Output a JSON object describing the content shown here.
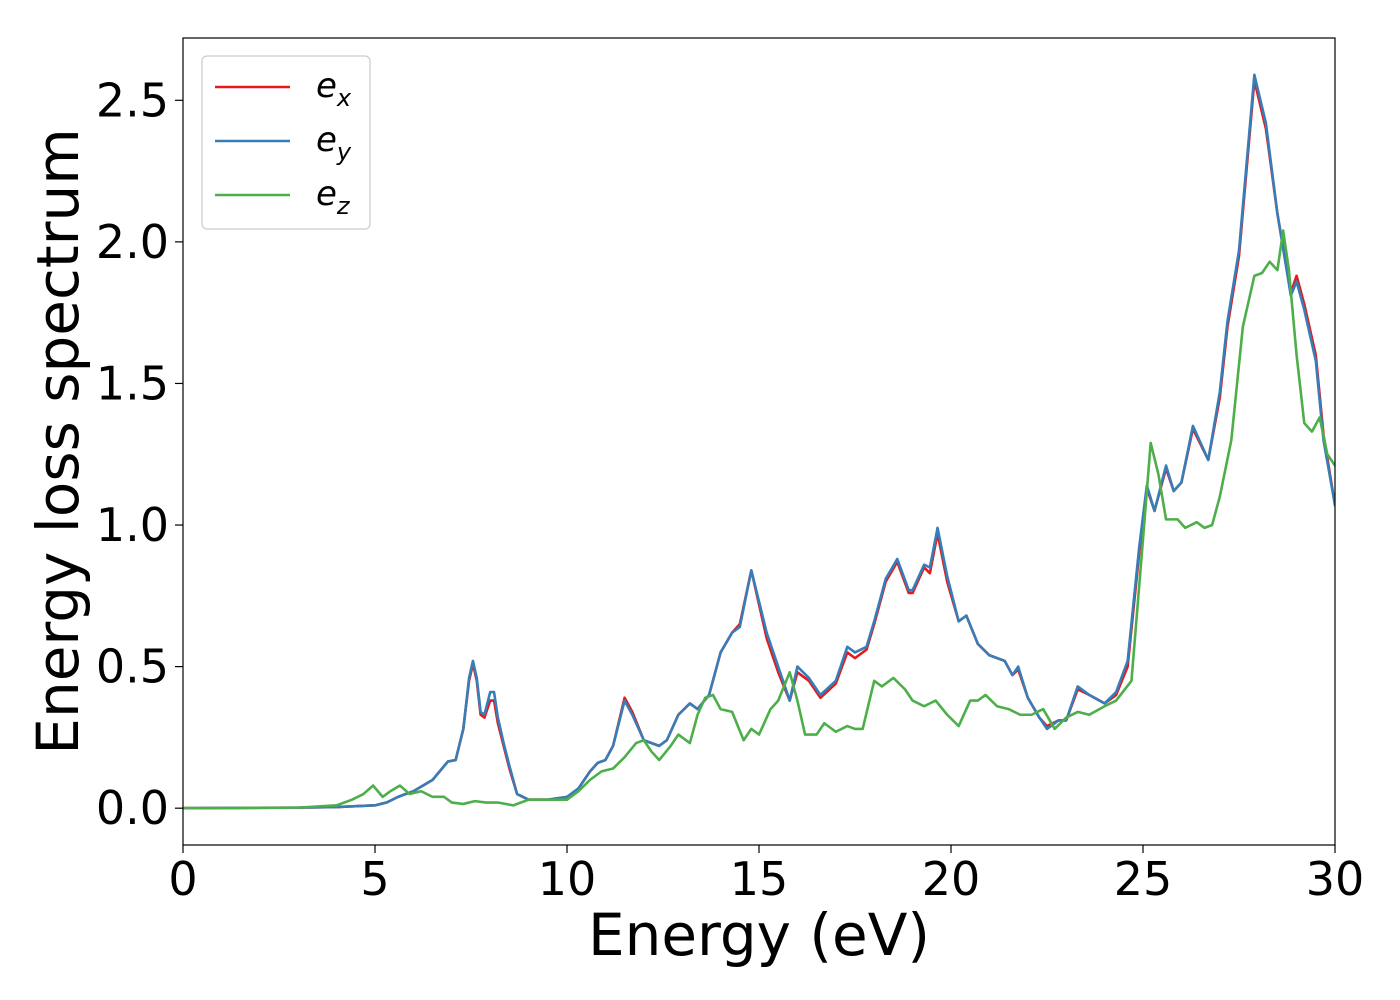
{
  "chart_data": {
    "type": "line",
    "title": "",
    "xlabel": "Energy (eV)",
    "ylabel": "Energy loss spectrum",
    "xlim": [
      0,
      30
    ],
    "ylim": [
      -0.13,
      2.72
    ],
    "xticks": [
      0,
      5,
      10,
      15,
      20,
      25,
      30
    ],
    "xtick_labels": [
      "0",
      "5",
      "10",
      "15",
      "20",
      "25",
      "30"
    ],
    "yticks": [
      0.0,
      0.5,
      1.0,
      1.5,
      2.0,
      2.5
    ],
    "ytick_labels": [
      "0.0",
      "0.5",
      "1.0",
      "1.5",
      "2.0",
      "2.5"
    ],
    "grid": false,
    "legend_position": "top-left",
    "series": [
      {
        "name": "e",
        "subscript": "x",
        "color": "#e41a1c",
        "points": [
          [
            0,
            0
          ],
          [
            3,
            0.002
          ],
          [
            4,
            0.004
          ],
          [
            5,
            0.01
          ],
          [
            5.3,
            0.02
          ],
          [
            5.6,
            0.04
          ],
          [
            6,
            0.06
          ],
          [
            6.5,
            0.1
          ],
          [
            6.9,
            0.165
          ],
          [
            7.1,
            0.17
          ],
          [
            7.3,
            0.28
          ],
          [
            7.45,
            0.45
          ],
          [
            7.55,
            0.51
          ],
          [
            7.65,
            0.45
          ],
          [
            7.75,
            0.33
          ],
          [
            7.85,
            0.32
          ],
          [
            8.0,
            0.38
          ],
          [
            8.1,
            0.38
          ],
          [
            8.2,
            0.3
          ],
          [
            8.35,
            0.22
          ],
          [
            8.5,
            0.14
          ],
          [
            8.7,
            0.05
          ],
          [
            9.0,
            0.03
          ],
          [
            9.5,
            0.03
          ],
          [
            10.0,
            0.04
          ],
          [
            10.3,
            0.07
          ],
          [
            10.6,
            0.13
          ],
          [
            10.8,
            0.16
          ],
          [
            11.0,
            0.17
          ],
          [
            11.2,
            0.22
          ],
          [
            11.5,
            0.39
          ],
          [
            11.7,
            0.34
          ],
          [
            12.0,
            0.24
          ],
          [
            12.4,
            0.22
          ],
          [
            12.6,
            0.24
          ],
          [
            12.9,
            0.33
          ],
          [
            13.2,
            0.37
          ],
          [
            13.4,
            0.35
          ],
          [
            13.7,
            0.4
          ],
          [
            14.0,
            0.55
          ],
          [
            14.3,
            0.62
          ],
          [
            14.5,
            0.65
          ],
          [
            14.8,
            0.84
          ],
          [
            15.0,
            0.72
          ],
          [
            15.2,
            0.6
          ],
          [
            15.5,
            0.48
          ],
          [
            15.8,
            0.38
          ],
          [
            16.0,
            0.48
          ],
          [
            16.3,
            0.45
          ],
          [
            16.6,
            0.39
          ],
          [
            17.0,
            0.44
          ],
          [
            17.3,
            0.55
          ],
          [
            17.5,
            0.53
          ],
          [
            17.8,
            0.56
          ],
          [
            18.0,
            0.65
          ],
          [
            18.3,
            0.8
          ],
          [
            18.6,
            0.87
          ],
          [
            18.9,
            0.76
          ],
          [
            19.0,
            0.76
          ],
          [
            19.3,
            0.85
          ],
          [
            19.45,
            0.83
          ],
          [
            19.65,
            0.97
          ],
          [
            19.9,
            0.8
          ],
          [
            20.2,
            0.66
          ],
          [
            20.4,
            0.68
          ],
          [
            20.7,
            0.58
          ],
          [
            21.0,
            0.54
          ],
          [
            21.4,
            0.52
          ],
          [
            21.6,
            0.47
          ],
          [
            21.75,
            0.49
          ],
          [
            22.0,
            0.39
          ],
          [
            22.3,
            0.32
          ],
          [
            22.5,
            0.29
          ],
          [
            22.8,
            0.31
          ],
          [
            23.0,
            0.31
          ],
          [
            23.3,
            0.42
          ],
          [
            23.6,
            0.4
          ],
          [
            24.0,
            0.37
          ],
          [
            24.3,
            0.4
          ],
          [
            24.6,
            0.5
          ],
          [
            24.9,
            0.9
          ],
          [
            25.1,
            1.13
          ],
          [
            25.3,
            1.05
          ],
          [
            25.6,
            1.2
          ],
          [
            25.8,
            1.12
          ],
          [
            26.0,
            1.15
          ],
          [
            26.3,
            1.34
          ],
          [
            26.7,
            1.23
          ],
          [
            27.0,
            1.45
          ],
          [
            27.2,
            1.7
          ],
          [
            27.5,
            1.95
          ],
          [
            27.9,
            2.57
          ],
          [
            28.2,
            2.4
          ],
          [
            28.5,
            2.1
          ],
          [
            28.85,
            1.82
          ],
          [
            29.0,
            1.88
          ],
          [
            29.2,
            1.78
          ],
          [
            29.5,
            1.6
          ],
          [
            29.7,
            1.32
          ],
          [
            30,
            1.07
          ]
        ]
      },
      {
        "name": "e",
        "subscript": "y",
        "color": "#377eb8",
        "points": [
          [
            0,
            0
          ],
          [
            3,
            0.002
          ],
          [
            4,
            0.004
          ],
          [
            5,
            0.01
          ],
          [
            5.3,
            0.02
          ],
          [
            5.6,
            0.04
          ],
          [
            6,
            0.06
          ],
          [
            6.5,
            0.1
          ],
          [
            6.9,
            0.165
          ],
          [
            7.1,
            0.17
          ],
          [
            7.3,
            0.28
          ],
          [
            7.45,
            0.46
          ],
          [
            7.55,
            0.52
          ],
          [
            7.65,
            0.46
          ],
          [
            7.75,
            0.34
          ],
          [
            7.85,
            0.33
          ],
          [
            8.0,
            0.41
          ],
          [
            8.1,
            0.41
          ],
          [
            8.2,
            0.32
          ],
          [
            8.35,
            0.23
          ],
          [
            8.5,
            0.15
          ],
          [
            8.7,
            0.05
          ],
          [
            9.0,
            0.03
          ],
          [
            9.5,
            0.03
          ],
          [
            10.0,
            0.04
          ],
          [
            10.3,
            0.07
          ],
          [
            10.6,
            0.13
          ],
          [
            10.8,
            0.16
          ],
          [
            11.0,
            0.17
          ],
          [
            11.2,
            0.22
          ],
          [
            11.5,
            0.38
          ],
          [
            11.7,
            0.33
          ],
          [
            12.0,
            0.24
          ],
          [
            12.4,
            0.22
          ],
          [
            12.6,
            0.24
          ],
          [
            12.9,
            0.33
          ],
          [
            13.2,
            0.37
          ],
          [
            13.4,
            0.35
          ],
          [
            13.7,
            0.4
          ],
          [
            14.0,
            0.55
          ],
          [
            14.3,
            0.62
          ],
          [
            14.5,
            0.64
          ],
          [
            14.8,
            0.84
          ],
          [
            15.0,
            0.73
          ],
          [
            15.2,
            0.62
          ],
          [
            15.5,
            0.5
          ],
          [
            15.8,
            0.38
          ],
          [
            16.0,
            0.5
          ],
          [
            16.3,
            0.46
          ],
          [
            16.6,
            0.4
          ],
          [
            17.0,
            0.45
          ],
          [
            17.3,
            0.57
          ],
          [
            17.5,
            0.55
          ],
          [
            17.8,
            0.57
          ],
          [
            18.0,
            0.66
          ],
          [
            18.3,
            0.81
          ],
          [
            18.6,
            0.88
          ],
          [
            18.9,
            0.77
          ],
          [
            19.0,
            0.77
          ],
          [
            19.3,
            0.86
          ],
          [
            19.45,
            0.85
          ],
          [
            19.65,
            0.99
          ],
          [
            19.9,
            0.82
          ],
          [
            20.2,
            0.66
          ],
          [
            20.4,
            0.68
          ],
          [
            20.7,
            0.58
          ],
          [
            21.0,
            0.54
          ],
          [
            21.4,
            0.52
          ],
          [
            21.6,
            0.47
          ],
          [
            21.75,
            0.5
          ],
          [
            22.0,
            0.39
          ],
          [
            22.3,
            0.32
          ],
          [
            22.5,
            0.28
          ],
          [
            22.8,
            0.31
          ],
          [
            23.0,
            0.31
          ],
          [
            23.3,
            0.43
          ],
          [
            23.6,
            0.4
          ],
          [
            24.0,
            0.37
          ],
          [
            24.3,
            0.41
          ],
          [
            24.6,
            0.52
          ],
          [
            24.9,
            0.92
          ],
          [
            25.1,
            1.14
          ],
          [
            25.3,
            1.05
          ],
          [
            25.6,
            1.21
          ],
          [
            25.8,
            1.12
          ],
          [
            26.0,
            1.15
          ],
          [
            26.3,
            1.35
          ],
          [
            26.7,
            1.23
          ],
          [
            27.0,
            1.47
          ],
          [
            27.2,
            1.72
          ],
          [
            27.5,
            1.97
          ],
          [
            27.9,
            2.59
          ],
          [
            28.2,
            2.42
          ],
          [
            28.5,
            2.1
          ],
          [
            28.85,
            1.81
          ],
          [
            29.0,
            1.86
          ],
          [
            29.2,
            1.76
          ],
          [
            29.5,
            1.58
          ],
          [
            29.7,
            1.3
          ],
          [
            30,
            1.07
          ]
        ]
      },
      {
        "name": "e",
        "subscript": "z",
        "color": "#4daf4a",
        "points": [
          [
            0,
            0
          ],
          [
            3,
            0.002
          ],
          [
            4.0,
            0.01
          ],
          [
            4.4,
            0.03
          ],
          [
            4.7,
            0.05
          ],
          [
            4.95,
            0.08
          ],
          [
            5.2,
            0.04
          ],
          [
            5.4,
            0.06
          ],
          [
            5.65,
            0.08
          ],
          [
            5.9,
            0.05
          ],
          [
            6.2,
            0.06
          ],
          [
            6.5,
            0.04
          ],
          [
            6.8,
            0.04
          ],
          [
            7.0,
            0.02
          ],
          [
            7.3,
            0.015
          ],
          [
            7.6,
            0.025
          ],
          [
            7.9,
            0.02
          ],
          [
            8.2,
            0.02
          ],
          [
            8.6,
            0.01
          ],
          [
            9.0,
            0.03
          ],
          [
            9.5,
            0.03
          ],
          [
            10.0,
            0.03
          ],
          [
            10.3,
            0.06
          ],
          [
            10.6,
            0.1
          ],
          [
            10.9,
            0.13
          ],
          [
            11.2,
            0.14
          ],
          [
            11.5,
            0.18
          ],
          [
            11.8,
            0.23
          ],
          [
            12.0,
            0.24
          ],
          [
            12.2,
            0.2
          ],
          [
            12.4,
            0.17
          ],
          [
            12.7,
            0.22
          ],
          [
            12.9,
            0.26
          ],
          [
            13.2,
            0.23
          ],
          [
            13.4,
            0.33
          ],
          [
            13.6,
            0.39
          ],
          [
            13.8,
            0.4
          ],
          [
            14.0,
            0.35
          ],
          [
            14.3,
            0.34
          ],
          [
            14.6,
            0.24
          ],
          [
            14.8,
            0.28
          ],
          [
            15.0,
            0.26
          ],
          [
            15.3,
            0.35
          ],
          [
            15.5,
            0.38
          ],
          [
            15.8,
            0.48
          ],
          [
            16.0,
            0.38
          ],
          [
            16.2,
            0.26
          ],
          [
            16.5,
            0.26
          ],
          [
            16.7,
            0.3
          ],
          [
            17.0,
            0.27
          ],
          [
            17.3,
            0.29
          ],
          [
            17.5,
            0.28
          ],
          [
            17.7,
            0.28
          ],
          [
            18.0,
            0.45
          ],
          [
            18.2,
            0.43
          ],
          [
            18.5,
            0.46
          ],
          [
            18.8,
            0.42
          ],
          [
            19.0,
            0.38
          ],
          [
            19.3,
            0.36
          ],
          [
            19.6,
            0.38
          ],
          [
            19.9,
            0.33
          ],
          [
            20.2,
            0.29
          ],
          [
            20.5,
            0.38
          ],
          [
            20.7,
            0.38
          ],
          [
            20.9,
            0.4
          ],
          [
            21.2,
            0.36
          ],
          [
            21.5,
            0.35
          ],
          [
            21.8,
            0.33
          ],
          [
            22.1,
            0.33
          ],
          [
            22.4,
            0.35
          ],
          [
            22.7,
            0.28
          ],
          [
            23.0,
            0.32
          ],
          [
            23.3,
            0.34
          ],
          [
            23.6,
            0.33
          ],
          [
            24.0,
            0.36
          ],
          [
            24.3,
            0.38
          ],
          [
            24.7,
            0.45
          ],
          [
            25.0,
            0.95
          ],
          [
            25.2,
            1.29
          ],
          [
            25.4,
            1.18
          ],
          [
            25.6,
            1.02
          ],
          [
            25.9,
            1.02
          ],
          [
            26.1,
            0.99
          ],
          [
            26.4,
            1.01
          ],
          [
            26.6,
            0.99
          ],
          [
            26.8,
            1.0
          ],
          [
            27.0,
            1.1
          ],
          [
            27.3,
            1.3
          ],
          [
            27.6,
            1.7
          ],
          [
            27.9,
            1.88
          ],
          [
            28.1,
            1.89
          ],
          [
            28.3,
            1.93
          ],
          [
            28.5,
            1.9
          ],
          [
            28.65,
            2.04
          ],
          [
            28.8,
            1.9
          ],
          [
            29.0,
            1.6
          ],
          [
            29.2,
            1.36
          ],
          [
            29.4,
            1.33
          ],
          [
            29.6,
            1.38
          ],
          [
            29.8,
            1.25
          ],
          [
            30,
            1.21
          ]
        ]
      }
    ]
  }
}
